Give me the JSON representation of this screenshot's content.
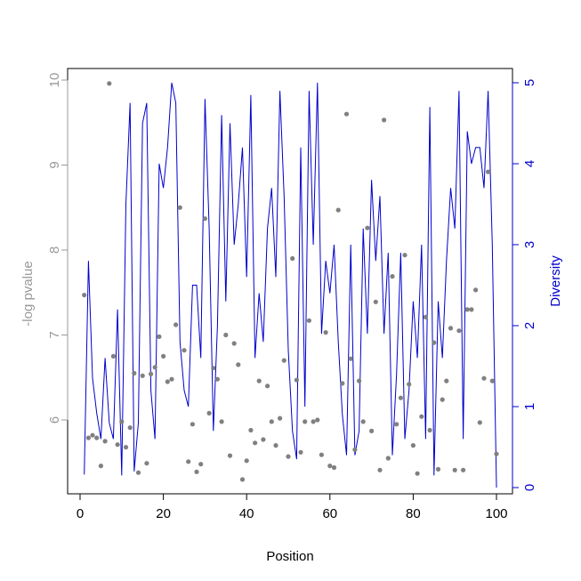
{
  "chart_data": {
    "type": "scatter",
    "title": "",
    "xlabel": "Position",
    "ylabel_left": "-log pvalue",
    "ylabel_right": "Diversity",
    "xlim": [
      1,
      100
    ],
    "ylim_left": [
      5.3,
      9.95
    ],
    "ylim_right": [
      0,
      5
    ],
    "x_ticks": [
      0,
      20,
      40,
      60,
      80,
      100
    ],
    "y_left_ticks": [
      6,
      7,
      8,
      9,
      10
    ],
    "y_right_ticks": [
      0,
      1,
      2,
      3,
      4,
      5
    ],
    "colors": {
      "points": "#808080",
      "line": "#0000cc",
      "left_axis": "#999999",
      "right_axis": "#0000cc",
      "frame": "#000000"
    },
    "series": [
      {
        "name": "-log pvalue",
        "kind": "points",
        "axis": "left",
        "x": [
          1,
          2,
          3,
          4,
          5,
          6,
          7,
          8,
          9,
          10,
          11,
          12,
          13,
          14,
          15,
          16,
          17,
          18,
          19,
          20,
          21,
          22,
          23,
          24,
          25,
          26,
          27,
          28,
          29,
          30,
          31,
          32,
          33,
          34,
          35,
          36,
          37,
          38,
          39,
          40,
          41,
          42,
          43,
          44,
          45,
          46,
          47,
          48,
          49,
          50,
          51,
          52,
          53,
          54,
          55,
          56,
          57,
          58,
          59,
          60,
          61,
          62,
          63,
          64,
          65,
          66,
          67,
          68,
          69,
          70,
          71,
          72,
          73,
          74,
          75,
          76,
          77,
          78,
          79,
          80,
          81,
          82,
          83,
          84,
          85,
          86,
          87,
          88,
          89,
          90,
          91,
          92,
          93,
          94,
          95,
          96,
          97,
          98,
          99,
          100
        ],
        "values": [
          7.47,
          5.79,
          5.82,
          5.79,
          5.46,
          5.75,
          9.96,
          6.75,
          5.71,
          5.98,
          5.68,
          5.91,
          6.55,
          5.38,
          6.52,
          5.49,
          6.54,
          6.62,
          6.98,
          6.75,
          6.45,
          6.48,
          7.12,
          8.5,
          6.82,
          5.51,
          5.95,
          5.39,
          5.48,
          8.37,
          6.08,
          6.61,
          6.48,
          5.98,
          7.0,
          5.58,
          6.9,
          6.65,
          5.3,
          5.52,
          5.88,
          5.73,
          6.46,
          5.77,
          6.4,
          5.98,
          5.7,
          6.02,
          6.7,
          5.57,
          7.9,
          6.47,
          5.62,
          5.98,
          7.17,
          5.98,
          6.0,
          5.59,
          7.03,
          5.46,
          5.44,
          8.47,
          6.43,
          9.6,
          6.72,
          5.65,
          6.46,
          5.98,
          8.26,
          5.87,
          7.39,
          5.41,
          9.53,
          5.55,
          7.69,
          5.95,
          6.26,
          7.94,
          6.42,
          5.7,
          5.37,
          6.04,
          7.21,
          5.88,
          6.91,
          5.42,
          6.24,
          6.46,
          7.08,
          5.41,
          7.05,
          5.41,
          7.3,
          7.3,
          7.53,
          5.97,
          6.49,
          8.92,
          6.46,
          5.6
        ]
      },
      {
        "name": "Diversity",
        "kind": "line",
        "axis": "right",
        "x": [
          1,
          2,
          3,
          4,
          5,
          6,
          7,
          8,
          9,
          10,
          11,
          12,
          13,
          14,
          15,
          16,
          17,
          18,
          19,
          20,
          21,
          22,
          23,
          24,
          25,
          26,
          27,
          28,
          29,
          30,
          31,
          32,
          33,
          34,
          35,
          36,
          37,
          38,
          39,
          40,
          41,
          42,
          43,
          44,
          45,
          46,
          47,
          48,
          49,
          50,
          51,
          52,
          53,
          54,
          55,
          56,
          57,
          58,
          59,
          60,
          61,
          62,
          63,
          64,
          65,
          66,
          67,
          68,
          69,
          70,
          71,
          72,
          73,
          74,
          75,
          76,
          77,
          78,
          79,
          80,
          81,
          82,
          83,
          84,
          85,
          86,
          87,
          88,
          89,
          90,
          91,
          92,
          93,
          94,
          95,
          96,
          97,
          98,
          99,
          100
        ],
        "values": [
          0.16,
          2.8,
          1.35,
          0.92,
          0.6,
          1.6,
          0.8,
          0.6,
          2.2,
          0.15,
          3.5,
          4.75,
          0.2,
          0.8,
          4.5,
          4.75,
          1.2,
          0.6,
          4.0,
          3.7,
          4.2,
          5.0,
          4.75,
          1.8,
          1.2,
          1.0,
          2.5,
          2.5,
          1.6,
          4.8,
          3.2,
          0.7,
          2.0,
          4.6,
          2.3,
          4.5,
          3.0,
          3.5,
          4.2,
          2.6,
          4.85,
          1.6,
          2.4,
          1.8,
          3.2,
          3.7,
          2.6,
          4.9,
          3.6,
          1.7,
          0.7,
          0.35,
          4.2,
          1.0,
          4.9,
          3.0,
          5.0,
          1.9,
          2.8,
          2.4,
          3.0,
          1.8,
          0.9,
          0.4,
          3.0,
          0.4,
          0.7,
          3.2,
          1.9,
          3.8,
          2.8,
          3.6,
          1.9,
          2.9,
          0.4,
          1.4,
          2.9,
          0.6,
          1.2,
          2.3,
          1.6,
          3.0,
          0.6,
          4.7,
          0.15,
          2.3,
          1.6,
          2.8,
          3.7,
          3.2,
          4.9,
          0.6,
          4.4,
          4.0,
          4.2,
          4.2,
          3.7,
          4.9,
          3.0,
          0.0
        ]
      }
    ]
  }
}
